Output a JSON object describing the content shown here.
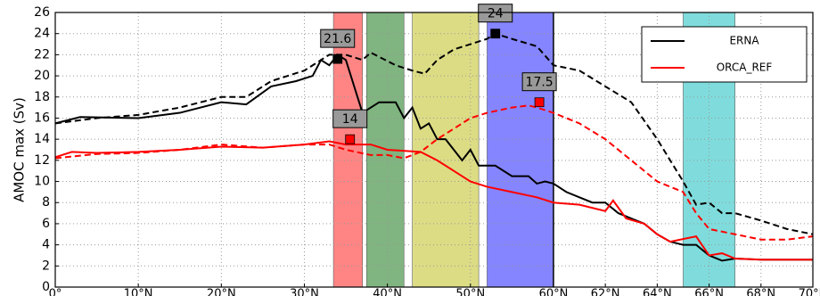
{
  "chart_data": {
    "type": "line",
    "y_label": "AMOC max (Sv)",
    "xlim": [
      0,
      70
    ],
    "x_scale_break": 60,
    "ylim": [
      0,
      26
    ],
    "yticks": [
      0,
      2,
      4,
      6,
      8,
      10,
      12,
      14,
      16,
      18,
      20,
      22,
      24,
      26
    ],
    "xticks": [
      {
        "value": 0,
        "label": "0°"
      },
      {
        "value": 10,
        "label": "10°N"
      },
      {
        "value": 20,
        "label": "20°N"
      },
      {
        "value": 30,
        "label": "30°N"
      },
      {
        "value": 40,
        "label": "40°N"
      },
      {
        "value": 50,
        "label": "50°N"
      },
      {
        "value": 60,
        "label": "60°N"
      },
      {
        "value": 62,
        "label": "62°N"
      },
      {
        "value": 64,
        "label": "64°N"
      },
      {
        "value": 66,
        "label": "66°N"
      },
      {
        "value": 68,
        "label": "68°N"
      },
      {
        "value": 70,
        "label": "70°N"
      }
    ],
    "grid": true,
    "legend": "upper right",
    "bands": [
      {
        "x": [
          33.5,
          37
        ],
        "color": "#ff7070"
      },
      {
        "x": [
          37.5,
          42
        ],
        "color": "#6aa86a"
      },
      {
        "x": [
          43,
          51
        ],
        "color": "#d6d670"
      },
      {
        "x": [
          52,
          60
        ],
        "color": "#7070ff"
      },
      {
        "x": [
          65,
          67
        ],
        "color": "#6ad6d6"
      }
    ],
    "series": [
      {
        "name": "ERNA",
        "color": "#000000",
        "dash": false,
        "x": [
          0,
          3,
          10,
          15,
          20,
          23,
          26,
          29,
          31,
          32,
          33,
          34,
          35,
          36,
          37,
          39,
          41,
          42,
          43,
          44,
          45,
          46,
          47,
          48,
          49,
          50,
          51,
          53,
          55,
          57,
          58,
          59,
          60,
          60.5,
          61,
          61.5,
          62,
          62.5,
          63,
          63.5,
          64,
          64.5,
          65,
          65.5,
          66,
          66.5,
          67,
          68,
          69,
          70
        ],
        "values": [
          15.5,
          16.1,
          16,
          16.5,
          17.5,
          17.3,
          19,
          19.5,
          20,
          21.5,
          21,
          22,
          21.5,
          19,
          16.5,
          17.5,
          17.5,
          16,
          17,
          15,
          15.5,
          14,
          14,
          13,
          12,
          13,
          11.5,
          11.5,
          10.5,
          10.5,
          9.8,
          10,
          9.8,
          9,
          8.5,
          8,
          8,
          7,
          6.5,
          6,
          5,
          4.3,
          4,
          4,
          3,
          2.5,
          2.7,
          2.6,
          2.6,
          2.6
        ]
      },
      {
        "name": "ORCA_REF",
        "color": "#ff0000",
        "dash": false,
        "x": [
          0,
          2,
          5,
          10,
          15,
          20,
          25,
          30,
          33,
          35,
          38,
          40,
          44,
          46,
          48,
          50,
          52,
          55,
          58,
          60,
          61,
          62,
          62.3,
          62.8,
          63.5,
          64,
          64.5,
          65.5,
          66,
          66.5,
          67,
          68,
          70
        ],
        "values": [
          12.3,
          12.8,
          12.7,
          12.8,
          13,
          13.3,
          13.2,
          13.5,
          13.8,
          13.5,
          13.5,
          13,
          12.8,
          12,
          11,
          10,
          9.5,
          9,
          8.5,
          8,
          7.8,
          7.2,
          8.2,
          6.5,
          6,
          5,
          4.3,
          4.8,
          3,
          3.2,
          2.7,
          2.6,
          2.6
        ]
      },
      {
        "color": "#000000",
        "dash": true,
        "x": [
          0,
          5,
          10,
          15,
          20,
          23,
          26,
          30,
          33,
          35,
          37,
          38,
          41,
          43,
          44.5,
          46,
          48,
          50,
          52,
          53,
          55,
          58,
          60,
          61,
          62,
          63,
          64,
          64.5,
          65,
          65.5,
          66,
          66.5,
          67,
          68,
          69,
          70
        ],
        "values": [
          15.5,
          16,
          16.3,
          17,
          18,
          18,
          19.5,
          20.5,
          22,
          22,
          21.5,
          22.2,
          21,
          20.5,
          20.2,
          21.5,
          22.5,
          23,
          23.5,
          24,
          23.5,
          22.8,
          21,
          20.5,
          19,
          17.5,
          14,
          12,
          10,
          7.8,
          8,
          7,
          7,
          6.3,
          5.5,
          5
        ]
      },
      {
        "color": "#ff0000",
        "dash": true,
        "x": [
          0,
          5,
          10,
          15,
          20,
          25,
          30,
          33,
          35,
          38,
          40,
          42,
          44,
          46,
          48,
          50,
          52,
          55,
          57,
          58,
          60,
          61,
          62,
          63,
          64,
          65,
          65.5,
          66,
          67,
          68,
          69,
          70
        ],
        "values": [
          12.2,
          12.6,
          12.7,
          13,
          13.5,
          13.2,
          13.5,
          13.5,
          13,
          12.5,
          12.5,
          12.2,
          12.8,
          14,
          15,
          16,
          16.5,
          17,
          17.2,
          17,
          16.5,
          15.5,
          14,
          12,
          10,
          9,
          7,
          5.5,
          5,
          4.5,
          4.5,
          4.8
        ]
      }
    ],
    "annotations": [
      {
        "x": 34,
        "y": 21.6,
        "color": "#000000"
      },
      {
        "x": 53,
        "y": 24.0,
        "color": "#000000"
      },
      {
        "x": 35.5,
        "y": 14.0,
        "color": "#ff0000"
      },
      {
        "x": 58.3,
        "y": 17.5,
        "color": "#ff0000"
      }
    ]
  }
}
